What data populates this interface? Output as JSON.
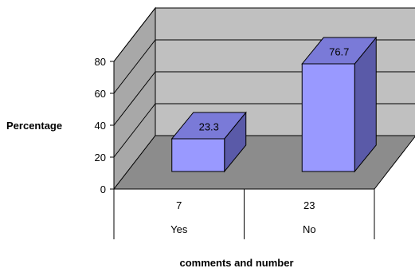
{
  "chart_data": {
    "type": "bar",
    "categories": [
      "Yes",
      "No"
    ],
    "category_counts": [
      "7",
      "23"
    ],
    "values": [
      23.3,
      76.7
    ],
    "data_labels": [
      "23.3",
      "76.7"
    ],
    "title": "",
    "ylabel": "Percentage",
    "xlabel": "comments and number",
    "ylim": [
      0,
      80
    ],
    "yticks": [
      "0",
      "20",
      "40",
      "60",
      "80"
    ],
    "grid": true,
    "legend": "none",
    "style": "3d-column"
  },
  "colors": {
    "bar_front": "#9999ff",
    "bar_side": "#5a5aa8",
    "bar_top": "#7a7ad8",
    "back_wall": "#c0c0c0",
    "side_wall": "#a8a8a8",
    "floor": "#8c8c8c"
  }
}
